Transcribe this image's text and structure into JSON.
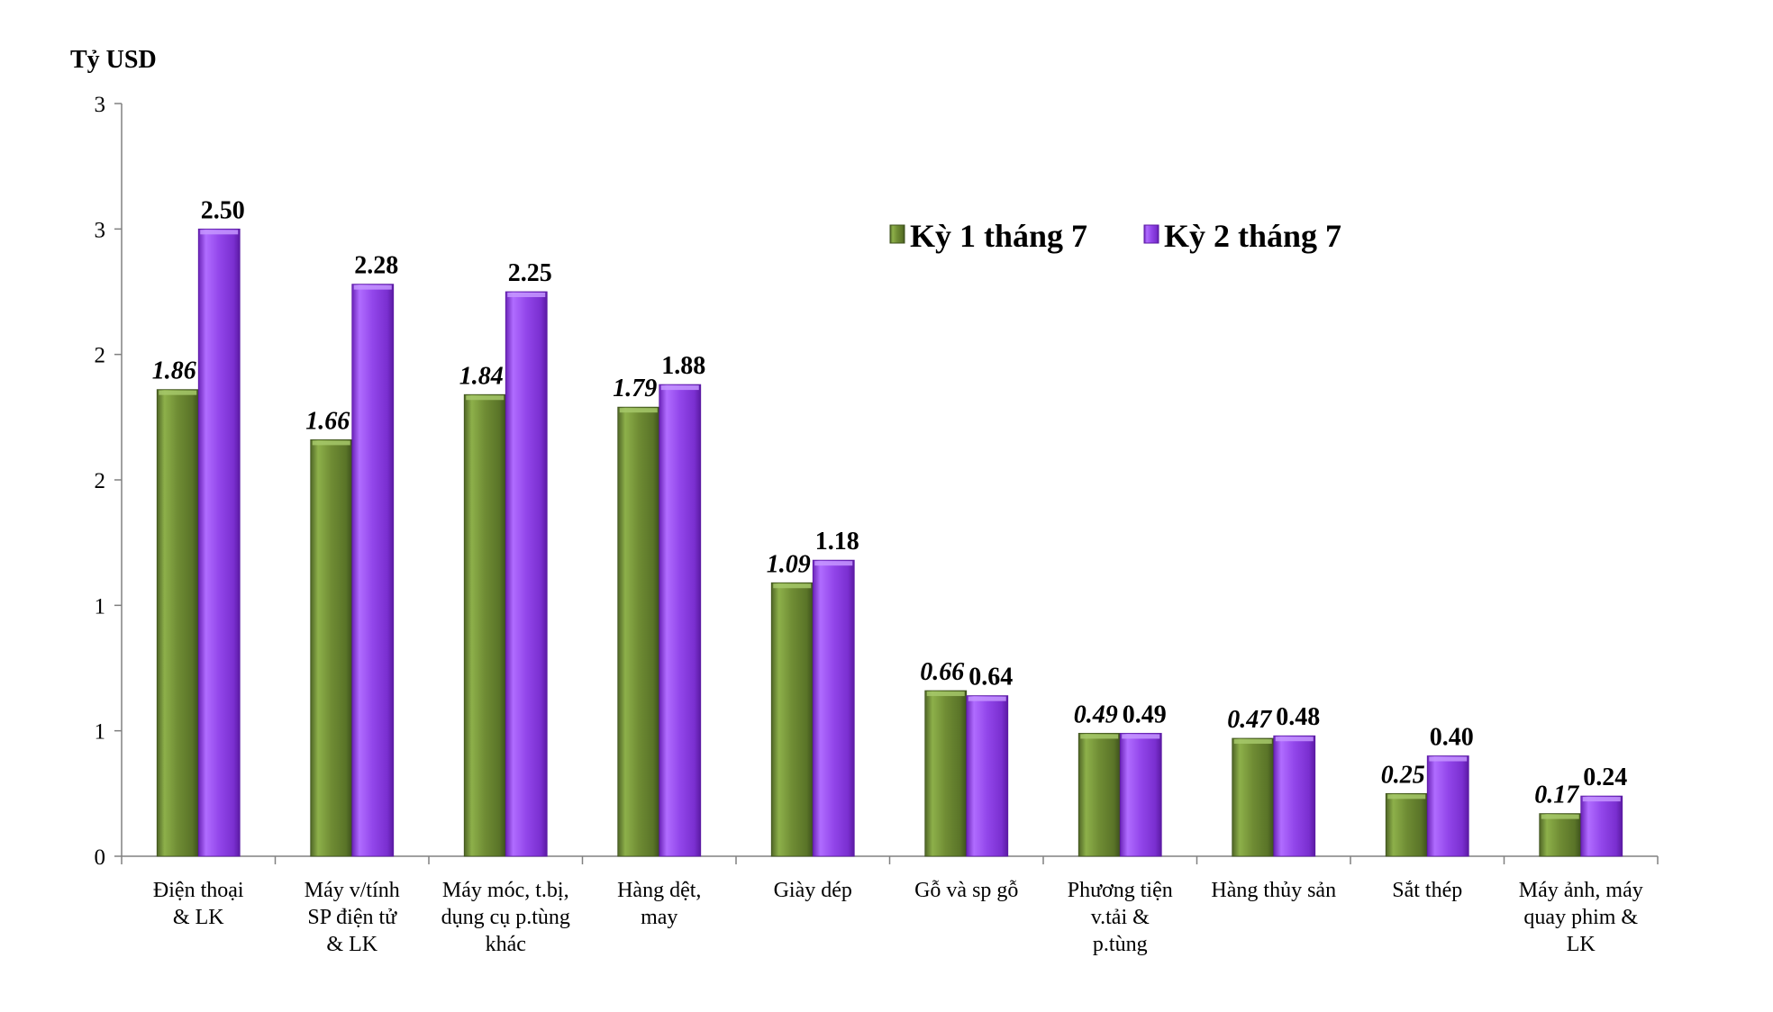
{
  "chart_data": {
    "type": "bar",
    "y_unit_label": "Tỷ USD",
    "title": "",
    "xlabel": "",
    "ylabel": "",
    "ylim": [
      0,
      3
    ],
    "y_ticks": [
      0,
      0.5,
      1,
      1.5,
      2,
      2.5,
      3
    ],
    "y_tick_labels": [
      "0",
      "1",
      "1",
      "2",
      "2",
      "3",
      "3"
    ],
    "grid": false,
    "legend_position": "top-right",
    "categories": [
      [
        "Điện thoại",
        "& LK"
      ],
      [
        "Máy v/tính",
        "SP điện tử",
        "& LK"
      ],
      [
        "Máy móc, t.bị,",
        "dụng cụ p.tùng",
        "khác"
      ],
      [
        "Hàng dệt,",
        "may"
      ],
      [
        "Giày dép"
      ],
      [
        "Gỗ và sp gỗ"
      ],
      [
        "Phương tiện",
        "v.tải &",
        "p.tùng"
      ],
      [
        "Hàng thủy sản"
      ],
      [
        "Sắt thép"
      ],
      [
        "Máy ảnh, máy",
        "quay phim &",
        "LK"
      ]
    ],
    "series": [
      {
        "name": "Kỳ 1 tháng 7",
        "color": "#77933c",
        "values": [
          1.86,
          1.66,
          1.84,
          1.79,
          1.09,
          0.66,
          0.49,
          0.47,
          0.25,
          0.17
        ],
        "labels": [
          "1.86",
          "1.66",
          "1.84",
          "1.79",
          "1.09",
          "0.66",
          "0.49",
          "0.47",
          "0.25",
          "0.17"
        ]
      },
      {
        "name": "Kỳ 2 tháng 7",
        "color": "#8e3fe6",
        "values": [
          2.5,
          2.28,
          2.25,
          1.88,
          1.18,
          0.64,
          0.49,
          0.48,
          0.4,
          0.24
        ],
        "labels": [
          "2.50",
          "2.28",
          "2.25",
          "1.88",
          "1.18",
          "0.64",
          "0.49",
          "0.48",
          "0.40",
          "0.24"
        ]
      }
    ]
  }
}
